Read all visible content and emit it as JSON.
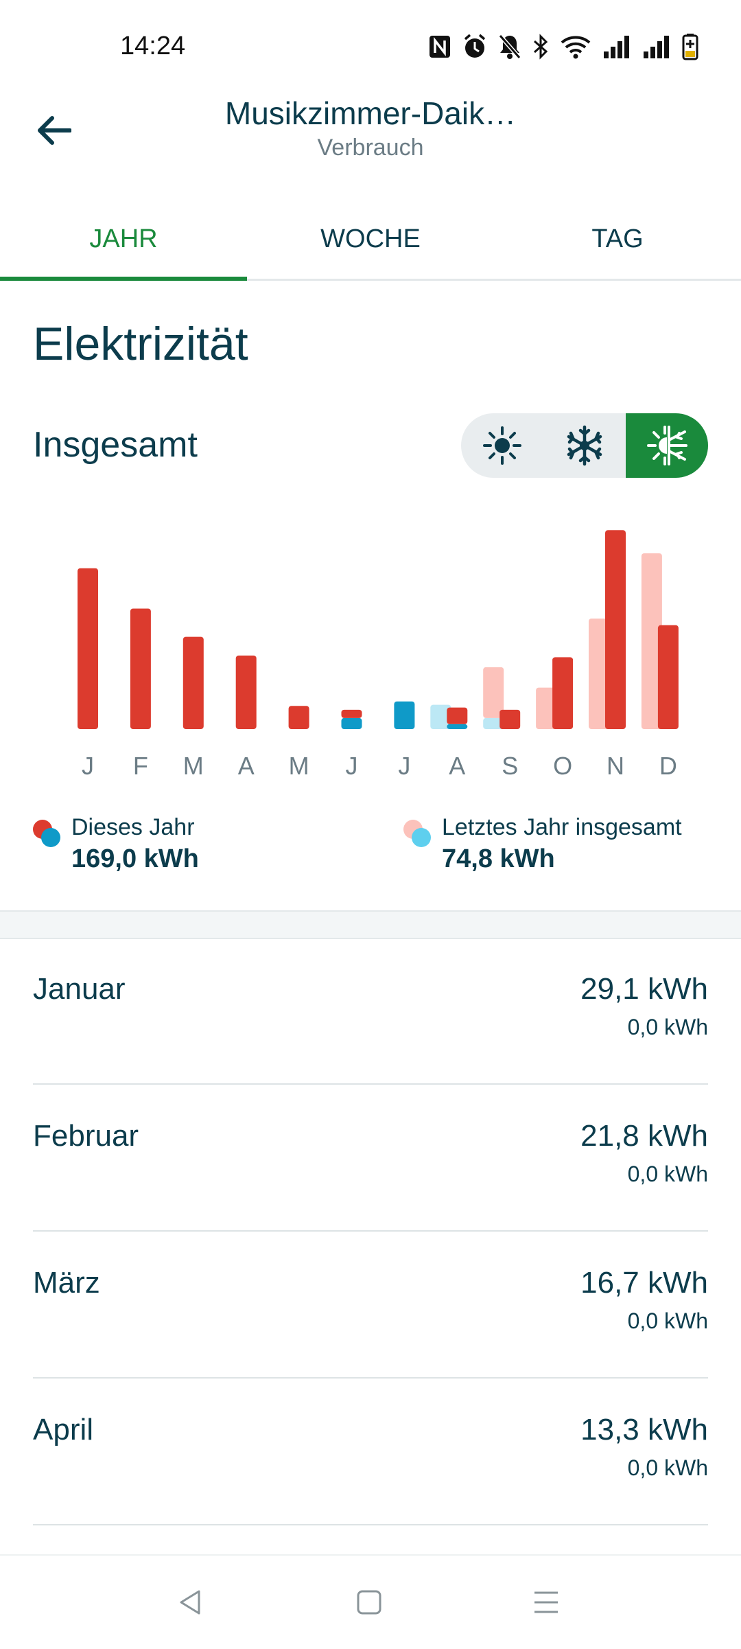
{
  "status_bar": {
    "time": "14:24",
    "icons": [
      "nfc-icon",
      "alarm-icon",
      "mute-icon",
      "bluetooth-icon",
      "wifi-icon",
      "signal-icon",
      "signal-icon",
      "battery-icon"
    ]
  },
  "header": {
    "title": "Musikzimmer-Daik…",
    "subtitle": "Verbrauch",
    "back_icon": "arrow-left-icon"
  },
  "tabs": [
    {
      "label": "JAHR",
      "active": true
    },
    {
      "label": "WOCHE",
      "active": false
    },
    {
      "label": "TAG",
      "active": false
    }
  ],
  "section_title": "Elektrizität",
  "subtitle": "Insgesamt",
  "mode_toggle": [
    {
      "icon": "sun-icon",
      "active": false
    },
    {
      "icon": "snowflake-icon",
      "active": false
    },
    {
      "icon": "sun-snowflake-icon",
      "active": true
    }
  ],
  "colors": {
    "this_year_heating": "#dc3b2e",
    "this_year_cooling": "#0f9ac8",
    "last_year_heating": "#fcc2bb",
    "last_year_cooling": "#bce8f5",
    "accent": "#1a8a3c",
    "text": "#0c3c4c"
  },
  "chart_data": {
    "type": "bar",
    "categories": [
      "J",
      "F",
      "M",
      "A",
      "M",
      "J",
      "J",
      "A",
      "S",
      "O",
      "N",
      "D"
    ],
    "ylim": [
      0,
      40
    ],
    "series": [
      {
        "name": "Dieses Jahr",
        "stack": "this",
        "part": "heating",
        "color": "#dc3b2e",
        "values": [
          29.1,
          21.8,
          16.7,
          13.3,
          4.2,
          1.5,
          0,
          3.0,
          3.5,
          13.0,
          36.0,
          18.8
        ]
      },
      {
        "name": "Dieses Jahr",
        "stack": "this",
        "part": "cooling",
        "color": "#0f9ac8",
        "values": [
          0,
          0,
          0,
          0,
          0,
          2.0,
          5.0,
          0.9,
          0,
          0,
          0,
          0
        ]
      },
      {
        "name": "Letztes Jahr insgesamt",
        "stack": "last",
        "part": "heating",
        "color": "#fcc2bb",
        "values": [
          0,
          0,
          0,
          0,
          0,
          0,
          0,
          0,
          9.2,
          7.5,
          20.0,
          31.8
        ]
      },
      {
        "name": "Letztes Jahr insgesamt",
        "stack": "last",
        "part": "cooling",
        "color": "#bce8f5",
        "values": [
          0,
          0,
          0,
          0,
          0,
          0,
          0,
          4.4,
          2.0,
          0,
          0,
          0
        ]
      }
    ]
  },
  "legend": [
    {
      "label": "Dieses Jahr",
      "value": "169,0 kWh",
      "color_a": "#dc3b2e",
      "color_b": "#0f9ac8"
    },
    {
      "label": "Letztes Jahr insgesamt",
      "value": "74,8 kWh",
      "color_a": "#fcc2bb",
      "color_b": "#5ecfee"
    }
  ],
  "months": [
    {
      "name": "Januar",
      "total": "29,1 kWh",
      "sub": "0,0 kWh"
    },
    {
      "name": "Februar",
      "total": "21,8 kWh",
      "sub": "0,0 kWh"
    },
    {
      "name": "März",
      "total": "16,7 kWh",
      "sub": "0,0 kWh"
    },
    {
      "name": "April",
      "total": "13,3 kWh",
      "sub": "0,0 kWh"
    }
  ],
  "nav": [
    "back-triangle-icon",
    "home-square-icon",
    "menu-lines-icon"
  ]
}
